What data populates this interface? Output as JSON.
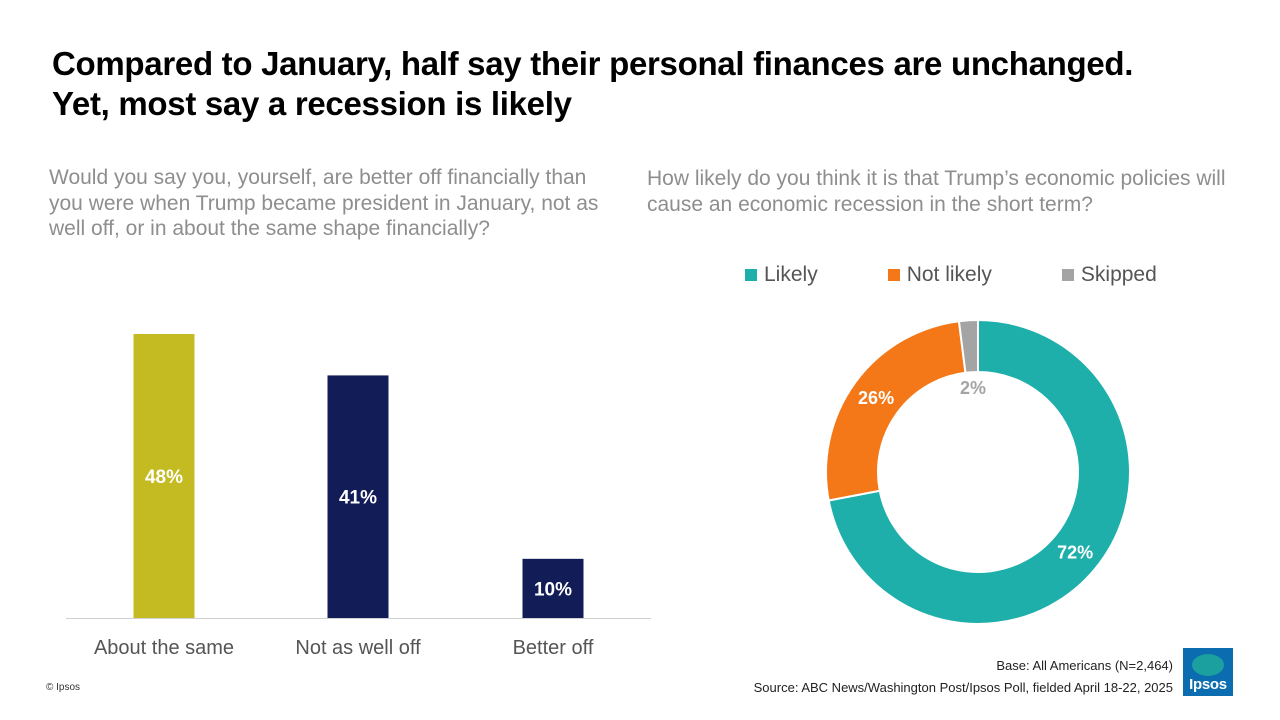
{
  "title": {
    "line1": "Compared to January, half say their personal finances are unchanged.",
    "line2": "Yet, most say a recession is likely"
  },
  "colors": {
    "about_the_same": "#c4bb22",
    "not_as_well_off": "#121c57",
    "better_off": "#121c57",
    "likely": "#1eafab",
    "not_likely": "#f57818",
    "skipped": "#a4a4a4"
  },
  "chart_data": [
    {
      "type": "bar",
      "title": "Would you say you, yourself, are better off financially than you were when Trump became president in January, not as well off, or in about the same shape financially?",
      "categories": [
        "About the same",
        "Not as well off",
        "Better off"
      ],
      "values": [
        48,
        41,
        10
      ],
      "value_labels": [
        "48%",
        "41%",
        "10%"
      ],
      "ylim": [
        0,
        50
      ],
      "grid": false
    },
    {
      "type": "pie",
      "title": "How likely do you think it is that Trump’s economic policies will cause an economic recession in the short term?",
      "donut": true,
      "legend_position": "top",
      "labels": [
        "Likely",
        "Not likely",
        "Skipped"
      ],
      "values": [
        72,
        26,
        2
      ],
      "value_labels": [
        "72%",
        "26%",
        "2%"
      ]
    }
  ],
  "footer": {
    "base": "Base: All Americans (N=2,464)",
    "source": "Source: ABC News/Washington Post/Ipsos Poll, fielded April 18-22, 2025",
    "copyright": "© Ipsos",
    "logo_text": "Ipsos"
  }
}
